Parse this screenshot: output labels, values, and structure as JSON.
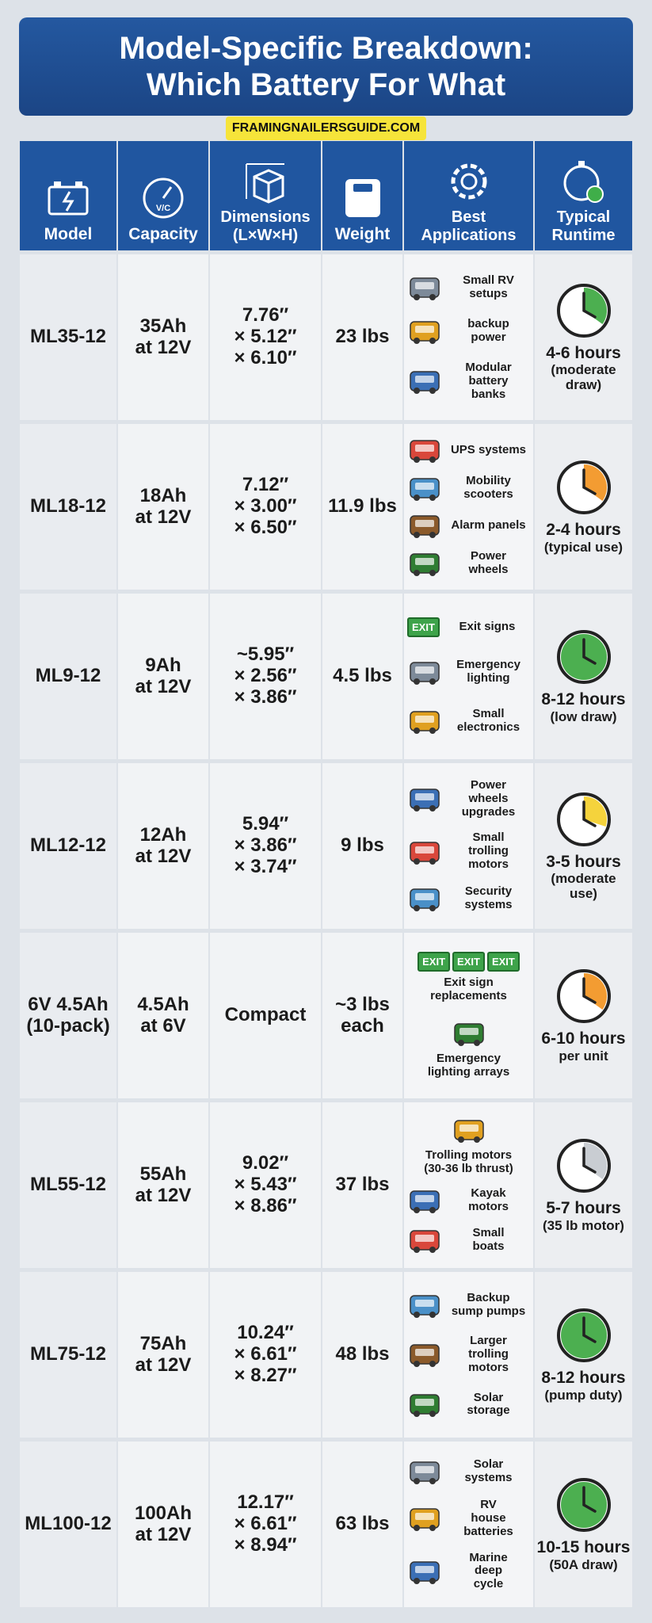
{
  "header": {
    "title": [
      "Model-Specific Breakdown:",
      "Which Battery For What"
    ],
    "watermark": "FRAMINGNAILERSGUIDE.COM"
  },
  "table": {
    "columns": [
      {
        "label": [
          "Model"
        ]
      },
      {
        "label": [
          "Capacity"
        ],
        "icon_text": "V/C"
      },
      {
        "label": [
          "Dimensions",
          "(L×W×H)"
        ]
      },
      {
        "label": [
          "Weight"
        ]
      },
      {
        "label": [
          "Best",
          "Applications"
        ]
      },
      {
        "label": [
          "Typical",
          "Runtime"
        ]
      }
    ],
    "rows": [
      {
        "model": [
          "ML35-12"
        ],
        "capacity": [
          "35Ah",
          "at 12V"
        ],
        "dimensions": [
          "7.76″",
          "× 5.12″",
          "× 6.10″"
        ],
        "weight": [
          "23 lbs"
        ],
        "applications": [
          {
            "label": [
              "Small RV",
              "setups"
            ]
          },
          {
            "label": [
              "backup",
              "power"
            ]
          },
          {
            "label": [
              "Modular",
              "battery",
              "banks"
            ]
          }
        ],
        "runtime": [
          "4-6 hours",
          "(moderate",
          "draw)"
        ]
      },
      {
        "model": [
          "ML18-12"
        ],
        "capacity": [
          "18Ah",
          "at 12V"
        ],
        "dimensions": [
          "7.12″",
          "× 3.00″",
          "× 6.50″"
        ],
        "weight": [
          "11.9 lbs"
        ],
        "applications": [
          {
            "label": [
              "UPS systems"
            ]
          },
          {
            "label": [
              "Mobility",
              "scooters"
            ]
          },
          {
            "label": [
              "Alarm panels"
            ]
          },
          {
            "label": [
              "Power",
              "wheels"
            ]
          }
        ],
        "runtime": [
          "2-4 hours",
          "(typical use)"
        ]
      },
      {
        "model": [
          "ML9-12"
        ],
        "capacity": [
          "9Ah",
          "at 12V"
        ],
        "dimensions": [
          "~5.95″",
          "× 2.56″",
          "× 3.86″"
        ],
        "weight": [
          "4.5 lbs"
        ],
        "applications": [
          {
            "label": [
              "Exit signs"
            ],
            "icon_texts": [
              "EXIT"
            ]
          },
          {
            "label": [
              "Emergency",
              "lighting"
            ]
          },
          {
            "label": [
              "Small",
              "electronics"
            ]
          }
        ],
        "runtime": [
          "8-12 hours",
          "(low draw)"
        ]
      },
      {
        "model": [
          "ML12-12"
        ],
        "capacity": [
          "12Ah",
          "at 12V"
        ],
        "dimensions": [
          "5.94″",
          "× 3.86″",
          "× 3.74″"
        ],
        "weight": [
          "9 lbs"
        ],
        "applications": [
          {
            "label": [
              "Power",
              "wheels",
              "upgrades"
            ]
          },
          {
            "label": [
              "Small",
              "trolling",
              "motors"
            ]
          },
          {
            "label": [
              "Security",
              "systems"
            ]
          }
        ],
        "runtime": [
          "3-5 hours",
          "(moderate",
          "use)"
        ]
      },
      {
        "model": [
          "6V 4.5Ah",
          "(10-pack)"
        ],
        "capacity": [
          "4.5Ah",
          "at 6V"
        ],
        "dimensions": [
          "Compact"
        ],
        "weight": [
          "~3 lbs",
          "each"
        ],
        "applications": [
          {
            "label": [
              "Exit sign",
              "replacements"
            ],
            "icon_texts": [
              "EXIT",
              "EXIT",
              "EXIT"
            ]
          },
          {
            "label": [
              "Emergency",
              "lighting arrays"
            ]
          }
        ],
        "runtime": [
          "6-10 hours",
          "per unit"
        ]
      },
      {
        "model": [
          "ML55-12"
        ],
        "capacity": [
          "55Ah",
          "at 12V"
        ],
        "dimensions": [
          "9.02″",
          "× 5.43″",
          "× 8.86″"
        ],
        "weight": [
          "37 lbs"
        ],
        "applications": [
          {
            "label": [
              "Trolling motors",
              "(30-36 lb thrust)"
            ]
          },
          {
            "label": [
              "Kayak",
              "motors"
            ]
          },
          {
            "label": [
              "Small",
              "boats"
            ]
          }
        ],
        "runtime": [
          "5-7 hours",
          "(35 lb motor)"
        ]
      },
      {
        "model": [
          "ML75-12"
        ],
        "capacity": [
          "75Ah",
          "at 12V"
        ],
        "dimensions": [
          "10.24″",
          "× 6.61″",
          "× 8.27″"
        ],
        "weight": [
          "48 lbs"
        ],
        "applications": [
          {
            "label": [
              "Backup",
              "sump pumps"
            ]
          },
          {
            "label": [
              "Larger",
              "trolling",
              "motors"
            ]
          },
          {
            "label": [
              "Solar",
              "storage"
            ]
          }
        ],
        "runtime": [
          "8-12 hours",
          "(pump duty)"
        ]
      },
      {
        "model": [
          "ML100-12"
        ],
        "capacity": [
          "100Ah",
          "at 12V"
        ],
        "dimensions": [
          "12.17″",
          "× 6.61″",
          "× 8.94″"
        ],
        "weight": [
          "63 lbs"
        ],
        "applications": [
          {
            "label": [
              "Solar",
              "systems"
            ]
          },
          {
            "label": [
              "RV",
              "house",
              "batteries"
            ]
          },
          {
            "label": [
              "Marine",
              "deep",
              "cycle"
            ]
          }
        ],
        "runtime": [
          "10-15 hours",
          "(50A draw)"
        ]
      }
    ]
  }
}
